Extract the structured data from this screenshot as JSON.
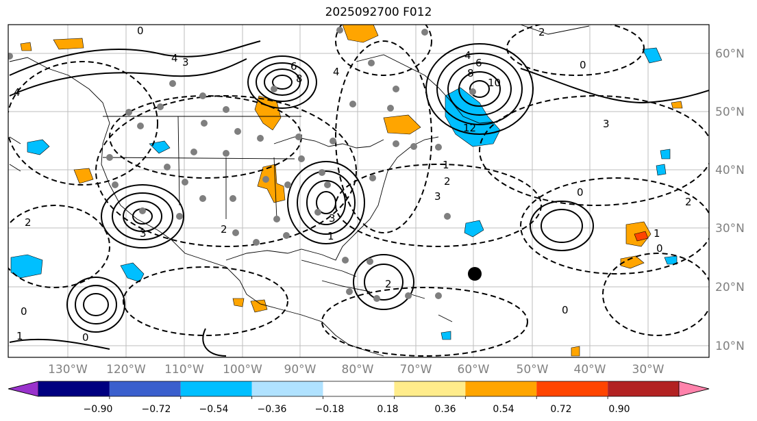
{
  "title": "2025092700 F012",
  "lon_labels": [
    "130°W",
    "120°W",
    "110°W",
    "100°W",
    "90°W",
    "80°W",
    "70°W",
    "60°W",
    "50°W",
    "40°W",
    "30°W"
  ],
  "lat_labels": [
    "60°N",
    "50°N",
    "40°N",
    "30°N",
    "20°N",
    "10°N"
  ],
  "colorbar": {
    "colors": [
      "#9932cc",
      "#000080",
      "#3a5fcd",
      "#00bfff",
      "#b0e2ff",
      "#ffffff",
      "#ffec8b",
      "#ffa500",
      "#ff4500",
      "#b22222",
      "#ff82ab"
    ],
    "labels": [
      "−0.90",
      "−0.72",
      "−0.54",
      "−0.36",
      "−0.18",
      "0.18",
      "0.36",
      "0.54",
      "0.72",
      "0.90"
    ]
  },
  "contour_labels": [
    "0",
    "1",
    "2",
    "3",
    "4",
    "6",
    "8",
    "10",
    "12"
  ]
}
